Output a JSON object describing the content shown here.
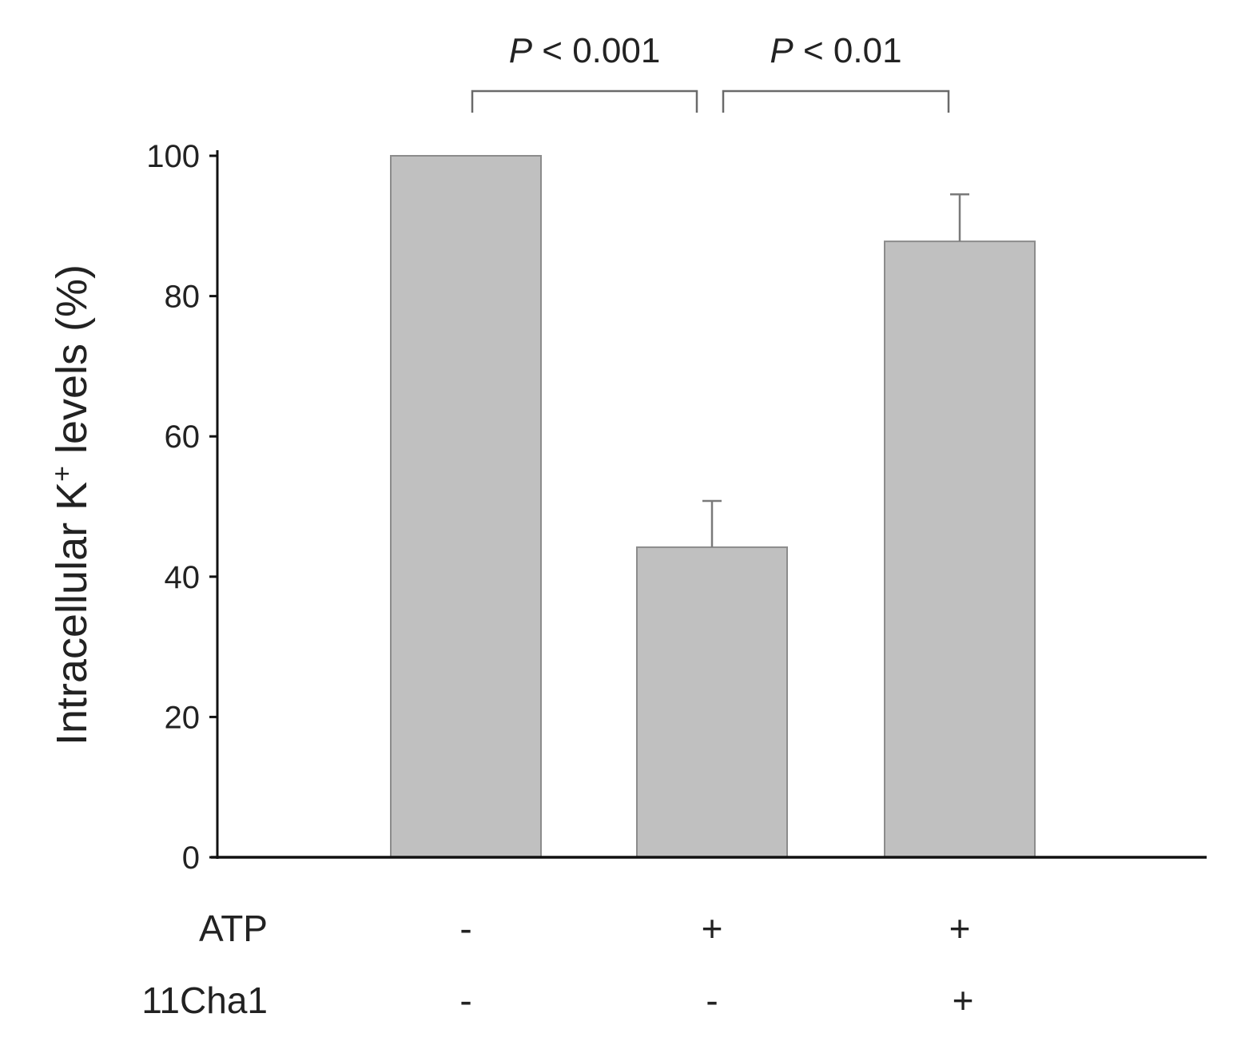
{
  "chart_data": {
    "type": "bar",
    "categories": [
      "ATP - / 11Cha1 -",
      "ATP + / 11Cha1 -",
      "ATP + / 11Cha1 +"
    ],
    "values": [
      100,
      44.2,
      87.8
    ],
    "error_upper": [
      null,
      50.8,
      94.5
    ],
    "ylabel_main": "Intracellular K",
    "ylabel_sup": "+",
    "ylabel_tail": " levels (%)",
    "ylim": [
      0,
      100
    ],
    "yticks": [
      "0",
      "20",
      "40",
      "60",
      "80",
      "100"
    ],
    "ytick_values": [
      0,
      20,
      40,
      60,
      80,
      100
    ],
    "grid": false,
    "bar_color": "#c0c0c0",
    "conditions": [
      {
        "name": "ATP",
        "signs": [
          "-",
          "+",
          "+"
        ]
      },
      {
        "name": "11Cha1",
        "signs": [
          "-",
          "-",
          "+"
        ]
      }
    ],
    "significance": [
      {
        "from": 0,
        "to": 1,
        "italic": "P",
        "text": " < 0.001"
      },
      {
        "from": 1,
        "to": 2,
        "italic": "P",
        "text": " < 0.01"
      }
    ]
  }
}
